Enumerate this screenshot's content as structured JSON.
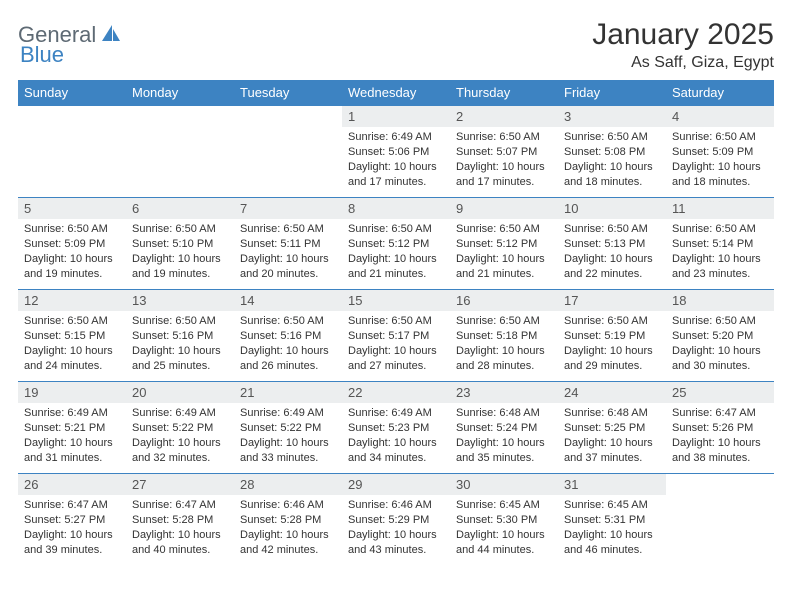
{
  "logo": {
    "text1": "General",
    "text2": "Blue"
  },
  "title": "January 2025",
  "subtitle": "As Saff, Giza, Egypt",
  "colors": {
    "header_bg": "#3d83c2",
    "header_text": "#ffffff",
    "daynum_bg": "#eceeef",
    "daynum_text": "#555555",
    "body_text": "#333333",
    "row_border": "#3d83c2",
    "page_bg": "#ffffff",
    "logo_gray": "#5e6a74",
    "logo_blue": "#3d83c2"
  },
  "typography": {
    "title_fontsize": 30,
    "subtitle_fontsize": 16,
    "dayheader_fontsize": 13,
    "daynum_fontsize": 13,
    "body_fontsize": 11,
    "font_family": "Arial"
  },
  "day_headers": [
    "Sunday",
    "Monday",
    "Tuesday",
    "Wednesday",
    "Thursday",
    "Friday",
    "Saturday"
  ],
  "weeks": [
    [
      {
        "n": "",
        "sr": "",
        "ss": "",
        "dl": ""
      },
      {
        "n": "",
        "sr": "",
        "ss": "",
        "dl": ""
      },
      {
        "n": "",
        "sr": "",
        "ss": "",
        "dl": ""
      },
      {
        "n": "1",
        "sr": "Sunrise: 6:49 AM",
        "ss": "Sunset: 5:06 PM",
        "dl": "Daylight: 10 hours and 17 minutes."
      },
      {
        "n": "2",
        "sr": "Sunrise: 6:50 AM",
        "ss": "Sunset: 5:07 PM",
        "dl": "Daylight: 10 hours and 17 minutes."
      },
      {
        "n": "3",
        "sr": "Sunrise: 6:50 AM",
        "ss": "Sunset: 5:08 PM",
        "dl": "Daylight: 10 hours and 18 minutes."
      },
      {
        "n": "4",
        "sr": "Sunrise: 6:50 AM",
        "ss": "Sunset: 5:09 PM",
        "dl": "Daylight: 10 hours and 18 minutes."
      }
    ],
    [
      {
        "n": "5",
        "sr": "Sunrise: 6:50 AM",
        "ss": "Sunset: 5:09 PM",
        "dl": "Daylight: 10 hours and 19 minutes."
      },
      {
        "n": "6",
        "sr": "Sunrise: 6:50 AM",
        "ss": "Sunset: 5:10 PM",
        "dl": "Daylight: 10 hours and 19 minutes."
      },
      {
        "n": "7",
        "sr": "Sunrise: 6:50 AM",
        "ss": "Sunset: 5:11 PM",
        "dl": "Daylight: 10 hours and 20 minutes."
      },
      {
        "n": "8",
        "sr": "Sunrise: 6:50 AM",
        "ss": "Sunset: 5:12 PM",
        "dl": "Daylight: 10 hours and 21 minutes."
      },
      {
        "n": "9",
        "sr": "Sunrise: 6:50 AM",
        "ss": "Sunset: 5:12 PM",
        "dl": "Daylight: 10 hours and 21 minutes."
      },
      {
        "n": "10",
        "sr": "Sunrise: 6:50 AM",
        "ss": "Sunset: 5:13 PM",
        "dl": "Daylight: 10 hours and 22 minutes."
      },
      {
        "n": "11",
        "sr": "Sunrise: 6:50 AM",
        "ss": "Sunset: 5:14 PM",
        "dl": "Daylight: 10 hours and 23 minutes."
      }
    ],
    [
      {
        "n": "12",
        "sr": "Sunrise: 6:50 AM",
        "ss": "Sunset: 5:15 PM",
        "dl": "Daylight: 10 hours and 24 minutes."
      },
      {
        "n": "13",
        "sr": "Sunrise: 6:50 AM",
        "ss": "Sunset: 5:16 PM",
        "dl": "Daylight: 10 hours and 25 minutes."
      },
      {
        "n": "14",
        "sr": "Sunrise: 6:50 AM",
        "ss": "Sunset: 5:16 PM",
        "dl": "Daylight: 10 hours and 26 minutes."
      },
      {
        "n": "15",
        "sr": "Sunrise: 6:50 AM",
        "ss": "Sunset: 5:17 PM",
        "dl": "Daylight: 10 hours and 27 minutes."
      },
      {
        "n": "16",
        "sr": "Sunrise: 6:50 AM",
        "ss": "Sunset: 5:18 PM",
        "dl": "Daylight: 10 hours and 28 minutes."
      },
      {
        "n": "17",
        "sr": "Sunrise: 6:50 AM",
        "ss": "Sunset: 5:19 PM",
        "dl": "Daylight: 10 hours and 29 minutes."
      },
      {
        "n": "18",
        "sr": "Sunrise: 6:50 AM",
        "ss": "Sunset: 5:20 PM",
        "dl": "Daylight: 10 hours and 30 minutes."
      }
    ],
    [
      {
        "n": "19",
        "sr": "Sunrise: 6:49 AM",
        "ss": "Sunset: 5:21 PM",
        "dl": "Daylight: 10 hours and 31 minutes."
      },
      {
        "n": "20",
        "sr": "Sunrise: 6:49 AM",
        "ss": "Sunset: 5:22 PM",
        "dl": "Daylight: 10 hours and 32 minutes."
      },
      {
        "n": "21",
        "sr": "Sunrise: 6:49 AM",
        "ss": "Sunset: 5:22 PM",
        "dl": "Daylight: 10 hours and 33 minutes."
      },
      {
        "n": "22",
        "sr": "Sunrise: 6:49 AM",
        "ss": "Sunset: 5:23 PM",
        "dl": "Daylight: 10 hours and 34 minutes."
      },
      {
        "n": "23",
        "sr": "Sunrise: 6:48 AM",
        "ss": "Sunset: 5:24 PM",
        "dl": "Daylight: 10 hours and 35 minutes."
      },
      {
        "n": "24",
        "sr": "Sunrise: 6:48 AM",
        "ss": "Sunset: 5:25 PM",
        "dl": "Daylight: 10 hours and 37 minutes."
      },
      {
        "n": "25",
        "sr": "Sunrise: 6:47 AM",
        "ss": "Sunset: 5:26 PM",
        "dl": "Daylight: 10 hours and 38 minutes."
      }
    ],
    [
      {
        "n": "26",
        "sr": "Sunrise: 6:47 AM",
        "ss": "Sunset: 5:27 PM",
        "dl": "Daylight: 10 hours and 39 minutes."
      },
      {
        "n": "27",
        "sr": "Sunrise: 6:47 AM",
        "ss": "Sunset: 5:28 PM",
        "dl": "Daylight: 10 hours and 40 minutes."
      },
      {
        "n": "28",
        "sr": "Sunrise: 6:46 AM",
        "ss": "Sunset: 5:28 PM",
        "dl": "Daylight: 10 hours and 42 minutes."
      },
      {
        "n": "29",
        "sr": "Sunrise: 6:46 AM",
        "ss": "Sunset: 5:29 PM",
        "dl": "Daylight: 10 hours and 43 minutes."
      },
      {
        "n": "30",
        "sr": "Sunrise: 6:45 AM",
        "ss": "Sunset: 5:30 PM",
        "dl": "Daylight: 10 hours and 44 minutes."
      },
      {
        "n": "31",
        "sr": "Sunrise: 6:45 AM",
        "ss": "Sunset: 5:31 PM",
        "dl": "Daylight: 10 hours and 46 minutes."
      },
      {
        "n": "",
        "sr": "",
        "ss": "",
        "dl": ""
      }
    ]
  ]
}
